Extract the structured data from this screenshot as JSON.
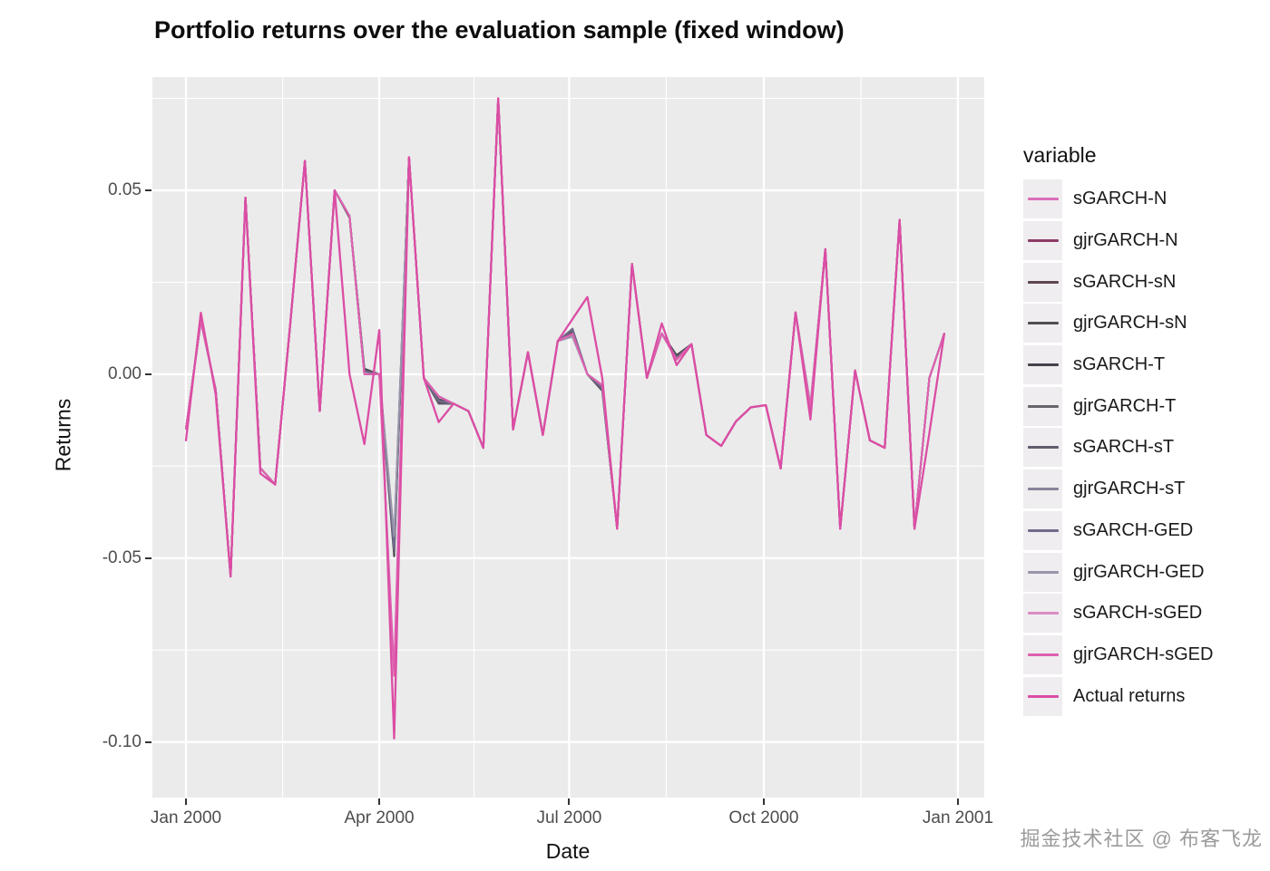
{
  "title": "Portfolio returns over the evaluation sample (fixed window)",
  "watermark": "掘金技术社区 @ 布客飞龙",
  "chart_data": {
    "type": "line",
    "title": "Portfolio returns over the evaluation sample (fixed window)",
    "xlabel": "Date",
    "ylabel": "Returns",
    "legend_title": "variable",
    "legend_position": "right",
    "grid": "on",
    "panel_bg": "#EBEBEB",
    "grid_color": "#FFFFFF",
    "ylim": [
      -0.1151,
      0.0808
    ],
    "y_ticks": [
      {
        "label": "0.05",
        "value": 0.05
      },
      {
        "label": "0.00",
        "value": 0.0
      },
      {
        "label": "-0.05",
        "value": -0.05
      },
      {
        "label": "-0.10",
        "value": -0.1
      }
    ],
    "y_minor_values": [
      0.075,
      0.025,
      -0.025,
      -0.075
    ],
    "x_ticks": [
      {
        "label": "Jan 2000",
        "week": 0
      },
      {
        "label": "Apr 2000",
        "week": 13.0
      },
      {
        "label": "Jul 2000",
        "week": 25.77
      },
      {
        "label": "Oct 2000",
        "week": 38.86
      },
      {
        "label": "Jan 2001",
        "week": 51.92
      }
    ],
    "x_minor_weeks": [
      6.5,
      19.38,
      32.3,
      45.4
    ],
    "n_points": 52,
    "x_unit": "weekly observations, Jan 2000 - Dec 2000",
    "actual": [
      -0.018,
      0.0167,
      -0.0055,
      -0.055,
      0.048,
      -0.027,
      -0.03,
      0.013,
      0.058,
      -0.01,
      0.05,
      0.0,
      -0.019,
      0.012,
      -0.099,
      0.059,
      -0.001,
      -0.013,
      -0.008,
      -0.01,
      -0.02,
      0.075,
      -0.015,
      0.006,
      -0.0165,
      0.009,
      0.015,
      0.021,
      -0.001,
      -0.042,
      0.03,
      -0.001,
      0.0138,
      0.0025,
      0.0082,
      -0.0165,
      -0.0195,
      -0.0128,
      -0.009,
      -0.0084,
      -0.0256,
      0.0168,
      -0.0123,
      0.034,
      -0.042,
      0.001,
      -0.018,
      -0.02,
      0.042,
      -0.042,
      -0.016,
      0.011
    ],
    "forecast_consensus": [
      -0.0148,
      0.0145,
      -0.0042,
      -0.055,
      0.048,
      -0.0255,
      -0.03,
      0.013,
      0.058,
      -0.01,
      0.05,
      0.043,
      0.0,
      0.0,
      -0.045,
      0.059,
      -0.001,
      -0.006,
      -0.008,
      -0.01,
      -0.02,
      0.075,
      -0.015,
      0.006,
      -0.0165,
      0.009,
      0.011,
      0.0,
      -0.003,
      -0.042,
      0.03,
      -0.001,
      0.0111,
      0.004,
      0.0082,
      -0.0165,
      -0.0195,
      -0.0128,
      -0.009,
      -0.0084,
      -0.0256,
      0.0168,
      -0.009,
      0.034,
      -0.042,
      0.001,
      -0.018,
      -0.02,
      0.042,
      -0.042,
      -0.001,
      0.011
    ],
    "series": [
      {
        "name": "sGARCH-N",
        "color": "#DB6EB9",
        "base": "forecast",
        "overrides": {}
      },
      {
        "name": "gjrGARCH-N",
        "color": "#8E3B66",
        "base": "forecast",
        "overrides": {
          "14": -0.047,
          "42": -0.0095
        }
      },
      {
        "name": "sGARCH-sN",
        "color": "#5E4553",
        "base": "forecast",
        "overrides": {
          "11": 0.0425,
          "14": -0.048,
          "17": -0.0075,
          "26": 0.0118,
          "42": -0.01
        }
      },
      {
        "name": "gjrGARCH-sN",
        "color": "#524C55",
        "base": "forecast",
        "overrides": {
          "14": -0.0465,
          "17": -0.0068,
          "26": 0.0114,
          "28": -0.0035,
          "42": -0.0092
        }
      },
      {
        "name": "sGARCH-T",
        "color": "#46424A",
        "base": "forecast",
        "overrides": {
          "12": 0.0015,
          "14": -0.0495,
          "17": -0.008,
          "26": 0.0122,
          "28": -0.0045,
          "33": 0.0052,
          "42": -0.0105
        }
      },
      {
        "name": "gjrGARCH-T",
        "color": "#69646C",
        "base": "forecast",
        "overrides": {
          "14": -0.046,
          "26": 0.0108,
          "42": -0.0088
        }
      },
      {
        "name": "sGARCH-sT",
        "color": "#615D6E",
        "base": "forecast",
        "overrides": {
          "12": 0.001,
          "14": -0.0485,
          "17": -0.0078,
          "26": 0.012,
          "28": -0.0042,
          "33": 0.0048,
          "42": -0.0102
        }
      },
      {
        "name": "gjrGARCH-sT",
        "color": "#87849A",
        "base": "forecast",
        "overrides": {
          "14": -0.0445,
          "26": 0.0105,
          "42": -0.0085
        }
      },
      {
        "name": "sGARCH-GED",
        "color": "#716B8B",
        "base": "forecast",
        "overrides": {
          "12": 0.0008,
          "14": -0.0475,
          "17": -0.0072,
          "26": 0.0124,
          "28": -0.0038,
          "42": -0.0098
        }
      },
      {
        "name": "gjrGARCH-GED",
        "color": "#9995AB",
        "base": "forecast",
        "overrides": {
          "14": -0.044,
          "26": 0.0102,
          "42": -0.0082
        }
      },
      {
        "name": "sGARCH-sGED",
        "color": "#DB8BC5",
        "base": "forecast",
        "overrides": {
          "14": -0.0805
        }
      },
      {
        "name": "gjrGARCH-sGED",
        "color": "#DF5FB0",
        "base": "forecast",
        "overrides": {
          "14": -0.082
        }
      },
      {
        "name": "Actual returns",
        "color": "#DB4DA4",
        "base": "actual",
        "overrides": {}
      }
    ]
  }
}
